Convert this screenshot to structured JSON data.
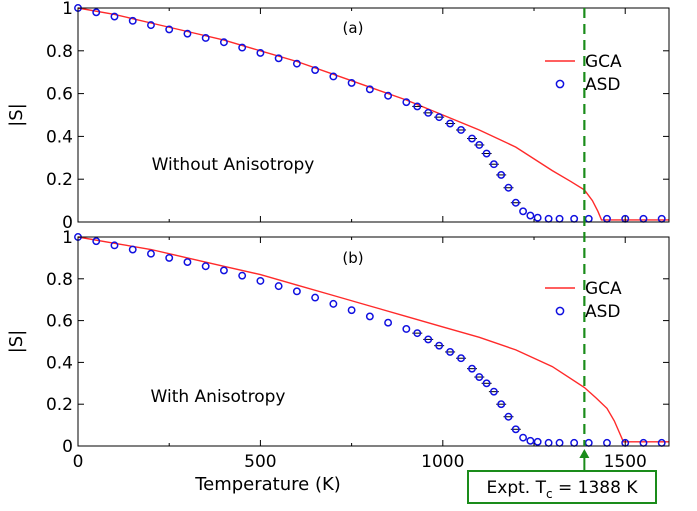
{
  "chart_data": {
    "type": "line",
    "xlabel": "Temperature (K)",
    "xlim": [
      0,
      1620
    ],
    "x_ticks": [
      0,
      500,
      1000,
      1500
    ],
    "marker": {
      "x": 1388,
      "color": "#1a8c1a",
      "label_prefix": "Expt. T",
      "label_sub": "c",
      "label_suffix": " = 1388 K"
    },
    "colors": {
      "gca": "#ff2a2a",
      "asd": "#1010e0",
      "marker": "#1a8c1a"
    },
    "panels": [
      {
        "id": "a",
        "panel_label": "(a)",
        "annotation": "Without Anisotropy",
        "ylabel": "|S|",
        "ylim": [
          0,
          1
        ],
        "y_ticks": [
          0,
          0.2,
          0.4,
          0.6,
          0.8,
          1
        ],
        "y_tick_labels": [
          "0",
          "0.2",
          "0.4",
          "0.6",
          "0.8",
          "1"
        ],
        "legend_position": "right",
        "series": [
          {
            "name": "GCA",
            "kind": "line",
            "x": [
              0,
              100,
              200,
              300,
              400,
              500,
              600,
              700,
              800,
              900,
              1000,
              1100,
              1200,
              1300,
              1350,
              1388,
              1410,
              1425,
              1435,
              1620
            ],
            "values": [
              1.0,
              0.97,
              0.93,
              0.89,
              0.85,
              0.8,
              0.75,
              0.69,
              0.63,
              0.57,
              0.5,
              0.43,
              0.35,
              0.24,
              0.19,
              0.15,
              0.1,
              0.05,
              0.01,
              0.01
            ]
          },
          {
            "name": "ASD",
            "kind": "scatter",
            "x": [
              0,
              50,
              100,
              150,
              200,
              250,
              300,
              350,
              400,
              450,
              500,
              550,
              600,
              650,
              700,
              750,
              800,
              850,
              900,
              930,
              960,
              990,
              1020,
              1050,
              1080,
              1100,
              1120,
              1140,
              1160,
              1180,
              1200,
              1220,
              1240,
              1260,
              1290,
              1320,
              1360,
              1400,
              1450,
              1500,
              1550,
              1600
            ],
            "values": [
              1.0,
              0.98,
              0.96,
              0.94,
              0.92,
              0.9,
              0.88,
              0.86,
              0.84,
              0.815,
              0.79,
              0.765,
              0.74,
              0.71,
              0.68,
              0.65,
              0.62,
              0.59,
              0.56,
              0.54,
              0.51,
              0.49,
              0.46,
              0.43,
              0.39,
              0.36,
              0.32,
              0.27,
              0.22,
              0.16,
              0.09,
              0.05,
              0.03,
              0.02,
              0.015,
              0.015,
              0.015,
              0.015,
              0.015,
              0.015,
              0.015,
              0.015
            ]
          }
        ]
      },
      {
        "id": "b",
        "panel_label": "(b)",
        "annotation": "With Anisotropy",
        "ylabel": "|S|",
        "ylim": [
          0,
          1
        ],
        "y_ticks": [
          0,
          0.2,
          0.4,
          0.6,
          0.8,
          1
        ],
        "y_tick_labels": [
          "0",
          "0.2",
          "0.4",
          "0.6",
          "0.8",
          "1"
        ],
        "legend_position": "right",
        "series": [
          {
            "name": "GCA",
            "kind": "line",
            "x": [
              0,
              100,
              200,
              300,
              400,
              500,
              600,
              700,
              800,
              900,
              1000,
              1100,
              1200,
              1300,
              1388,
              1420,
              1450,
              1470,
              1485,
              1495,
              1620
            ],
            "values": [
              1.0,
              0.97,
              0.94,
              0.9,
              0.86,
              0.82,
              0.77,
              0.72,
              0.67,
              0.62,
              0.57,
              0.52,
              0.46,
              0.38,
              0.28,
              0.23,
              0.18,
              0.12,
              0.06,
              0.02,
              0.02
            ]
          },
          {
            "name": "ASD",
            "kind": "scatter",
            "x": [
              0,
              50,
              100,
              150,
              200,
              250,
              300,
              350,
              400,
              450,
              500,
              550,
              600,
              650,
              700,
              750,
              800,
              850,
              900,
              930,
              960,
              990,
              1020,
              1050,
              1080,
              1100,
              1120,
              1140,
              1160,
              1180,
              1200,
              1220,
              1240,
              1260,
              1290,
              1320,
              1360,
              1400,
              1450,
              1500,
              1550,
              1600
            ],
            "values": [
              1.0,
              0.98,
              0.96,
              0.94,
              0.92,
              0.9,
              0.88,
              0.86,
              0.84,
              0.815,
              0.79,
              0.765,
              0.74,
              0.71,
              0.68,
              0.65,
              0.62,
              0.59,
              0.56,
              0.54,
              0.51,
              0.48,
              0.45,
              0.42,
              0.37,
              0.33,
              0.3,
              0.26,
              0.2,
              0.14,
              0.08,
              0.04,
              0.025,
              0.02,
              0.015,
              0.015,
              0.015,
              0.015,
              0.015,
              0.015,
              0.015,
              0.015
            ]
          }
        ]
      }
    ]
  }
}
